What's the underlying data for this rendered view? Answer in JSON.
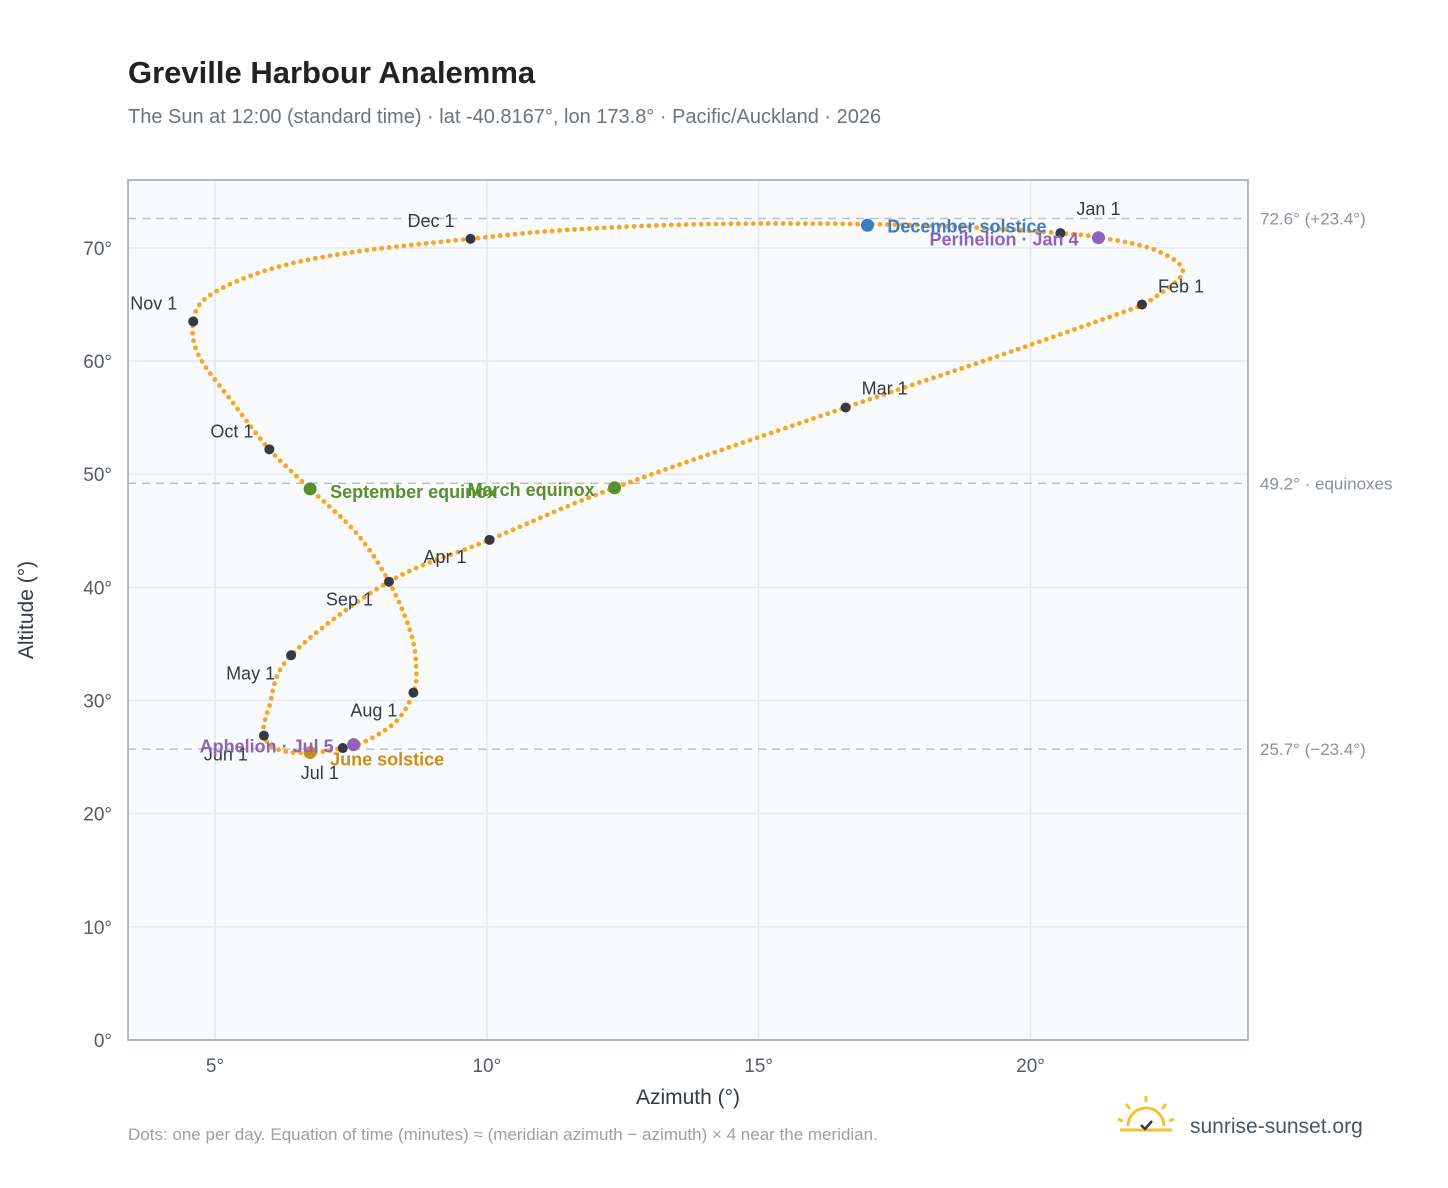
{
  "header": {
    "title": "Greville Harbour Analemma",
    "subtitle": "The Sun at 12:00 (standard time) · lat -40.8167°, lon 173.8° · Pacific/Auckland · 2026"
  },
  "footer": {
    "note": "Dots: one per day. Equation of time (minutes) ≈ (meridian azimuth − azimuth) × 4 near the meridian.",
    "brand": "sunrise-sunset.org",
    "brand_icon": "sun-logo-icon"
  },
  "colors": {
    "curve": "#f5a623",
    "month_dot": "#333a44",
    "equinox": "#5a8f2e",
    "june_solstice": "#c8901a",
    "december_solstice": "#3b7dc4",
    "apsis": "#8e63b8",
    "plot_bg": "#f8fafd",
    "grid": "#e3e8ef",
    "ref_line": "#b8c0cb"
  },
  "chart_data": {
    "type": "scatter",
    "xlabel": "Azimuth (°)",
    "ylabel": "Altitude (°)",
    "xlim": [
      3.4,
      24.0
    ],
    "ylim": [
      0,
      76
    ],
    "xticks": [
      {
        "value": 5,
        "label": "5°"
      },
      {
        "value": 10,
        "label": "10°"
      },
      {
        "value": 15,
        "label": "15°"
      },
      {
        "value": 20,
        "label": "20°"
      }
    ],
    "yticks": [
      {
        "value": 0,
        "label": "0°"
      },
      {
        "value": 10,
        "label": "10°"
      },
      {
        "value": 20,
        "label": "20°"
      },
      {
        "value": 30,
        "label": "30°"
      },
      {
        "value": 40,
        "label": "40°"
      },
      {
        "value": 50,
        "label": "50°"
      },
      {
        "value": 60,
        "label": "60°"
      },
      {
        "value": 70,
        "label": "70°"
      }
    ],
    "grid": true,
    "reference_lines": [
      {
        "y": 72.6,
        "label": "72.6° (+23.4°)"
      },
      {
        "y": 49.2,
        "label": "49.2° · equinoxes"
      },
      {
        "y": 25.7,
        "label": "25.7° (−23.4°)"
      }
    ],
    "path": [
      {
        "x": 22.1,
        "y": 65.0
      },
      {
        "x": 22.8,
        "y": 67.8
      },
      {
        "x": 22.3,
        "y": 69.8
      },
      {
        "x": 21.3,
        "y": 70.9
      },
      {
        "x": 20.55,
        "y": 71.3
      },
      {
        "x": 19.0,
        "y": 71.8
      },
      {
        "x": 17.0,
        "y": 72.1
      },
      {
        "x": 14.0,
        "y": 72.1
      },
      {
        "x": 11.5,
        "y": 71.6
      },
      {
        "x": 9.7,
        "y": 70.8
      },
      {
        "x": 7.5,
        "y": 69.6
      },
      {
        "x": 6.0,
        "y": 68.1
      },
      {
        "x": 4.9,
        "y": 65.8
      },
      {
        "x": 4.6,
        "y": 63.5
      },
      {
        "x": 4.7,
        "y": 60.5
      },
      {
        "x": 5.3,
        "y": 56.5
      },
      {
        "x": 6.0,
        "y": 52.2
      },
      {
        "x": 6.75,
        "y": 48.7
      },
      {
        "x": 7.6,
        "y": 44.8
      },
      {
        "x": 8.2,
        "y": 40.5
      },
      {
        "x": 8.6,
        "y": 36.0
      },
      {
        "x": 8.7,
        "y": 33.0
      },
      {
        "x": 8.65,
        "y": 30.7
      },
      {
        "x": 8.3,
        "y": 28.0
      },
      {
        "x": 7.6,
        "y": 26.0
      },
      {
        "x": 7.35,
        "y": 25.8
      },
      {
        "x": 6.8,
        "y": 25.4
      },
      {
        "x": 6.2,
        "y": 25.6
      },
      {
        "x": 5.9,
        "y": 26.9
      },
      {
        "x": 6.0,
        "y": 29.5
      },
      {
        "x": 6.4,
        "y": 34.0
      },
      {
        "x": 8.2,
        "y": 40.5
      },
      {
        "x": 10.05,
        "y": 44.2
      },
      {
        "x": 12.35,
        "y": 48.8
      },
      {
        "x": 16.6,
        "y": 55.9
      },
      {
        "x": 19.5,
        "y": 60.6
      },
      {
        "x": 22.1,
        "y": 65.0
      }
    ],
    "month_markers": [
      {
        "label": "Jan 1",
        "x": 20.55,
        "y": 71.3
      },
      {
        "label": "Feb 1",
        "x": 22.05,
        "y": 65.0
      },
      {
        "label": "Mar 1",
        "x": 16.6,
        "y": 55.9
      },
      {
        "label": "Apr 1",
        "x": 10.05,
        "y": 44.2
      },
      {
        "label": "May 1",
        "x": 6.4,
        "y": 34.0
      },
      {
        "label": "Jun 1",
        "x": 5.9,
        "y": 26.9
      },
      {
        "label": "Jul 1",
        "x": 7.35,
        "y": 25.8
      },
      {
        "label": "Aug 1",
        "x": 8.65,
        "y": 30.7
      },
      {
        "label": "Sep 1",
        "x": 8.2,
        "y": 40.5
      },
      {
        "label": "Oct 1",
        "x": 6.0,
        "y": 52.2
      },
      {
        "label": "Nov 1",
        "x": 4.6,
        "y": 63.5
      },
      {
        "label": "Dec 1",
        "x": 9.7,
        "y": 70.8
      }
    ],
    "events": [
      {
        "label": "March equinox",
        "x": 12.35,
        "y": 48.8,
        "kind": "equinox"
      },
      {
        "label": "September equinox",
        "x": 6.75,
        "y": 48.7,
        "kind": "equinox"
      },
      {
        "label": "June solstice",
        "x": 6.75,
        "y": 25.4,
        "kind": "june_solstice"
      },
      {
        "label": "December solstice",
        "x": 17.0,
        "y": 72.0,
        "kind": "december_solstice"
      },
      {
        "label": "Perihelion · Jan 4",
        "x": 21.25,
        "y": 70.9,
        "kind": "apsis"
      },
      {
        "label": "Aphelion · Jul 5",
        "x": 7.55,
        "y": 26.1,
        "kind": "apsis"
      }
    ]
  }
}
